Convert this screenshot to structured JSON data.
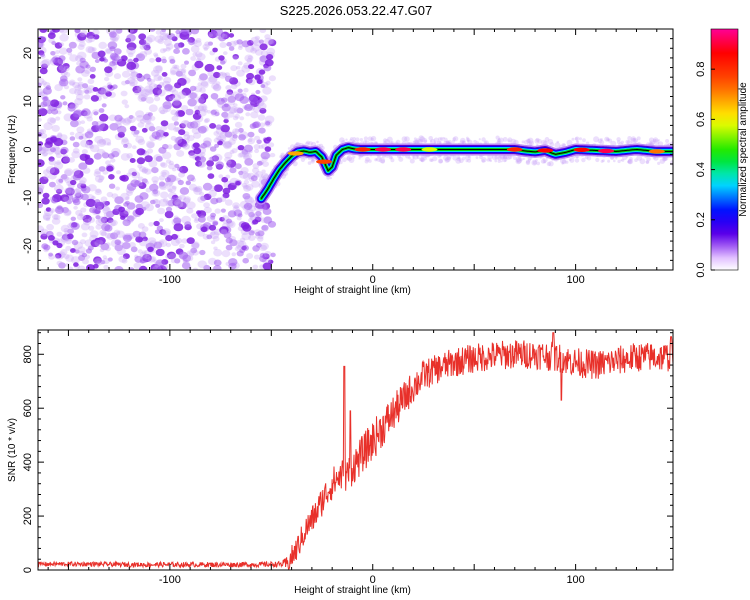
{
  "figure": {
    "title": "S225.2026.053.22.47.G07"
  },
  "colors": {
    "snr_line": "#e8302a",
    "scatter_noise": "#8a2be2",
    "frame": "#000000"
  },
  "chart_data": [
    {
      "type": "heatmap",
      "name": "spectrogram",
      "xlabel": "Height of straight line (km)",
      "ylabel": "Frequency (Hz)",
      "xlim": [
        -165,
        148
      ],
      "ylim": [
        -25,
        25
      ],
      "xticks": [
        -100,
        0,
        100
      ],
      "yticks": [
        -20,
        -10,
        0,
        10,
        20
      ],
      "xtick_labels": [
        "-100",
        "0",
        "100"
      ],
      "ytick_labels": [
        "-20",
        "-10",
        "0",
        "10",
        "20"
      ],
      "noise_region_x": [
        -165,
        -52
      ],
      "ridge": {
        "x": [
          -55,
          -52,
          -49,
          -46,
          -43,
          -40,
          -37,
          -34,
          -31,
          -28,
          -25,
          -22,
          -20,
          -18,
          -15,
          -12,
          -9,
          -6,
          -3,
          0,
          10,
          20,
          30,
          40,
          50,
          60,
          70,
          75,
          80,
          85,
          90,
          95,
          100,
          110,
          120,
          130,
          140,
          148
        ],
        "freq": [
          -10.2,
          -8.4,
          -6.2,
          -4.2,
          -2.7,
          -1.4,
          -0.5,
          -0.3,
          -0.6,
          -0.4,
          -1.6,
          -4.4,
          -3.6,
          -1.2,
          0.0,
          0.4,
          0.1,
          0.0,
          0.0,
          0.0,
          0.0,
          0.0,
          0.0,
          0.0,
          0.0,
          0.0,
          0.0,
          -0.3,
          -0.5,
          -0.2,
          -1.0,
          -0.6,
          0.0,
          -0.2,
          -0.4,
          0.0,
          -0.4,
          -0.4
        ]
      },
      "colorbar": {
        "label": "Normalized spectral amplitude",
        "range": [
          0,
          0.96
        ],
        "ticks": [
          0.0,
          0.2,
          0.4,
          0.6,
          0.8
        ],
        "tick_labels": [
          "0.0",
          "0.2",
          "0.4",
          "0.6",
          "0.8"
        ]
      }
    },
    {
      "type": "line",
      "name": "snr",
      "xlabel": "Height of straight line (km)",
      "ylabel": "SNR (10 * v/v)",
      "xlim": [
        -165,
        148
      ],
      "ylim": [
        0,
        890
      ],
      "xticks": [
        -100,
        0,
        100
      ],
      "yticks": [
        0,
        200,
        400,
        600,
        800
      ],
      "xtick_labels": [
        "-100",
        "0",
        "100"
      ],
      "ytick_labels": [
        "0",
        "200",
        "400",
        "600",
        "800"
      ],
      "trend": {
        "x": [
          -165,
          -140,
          -120,
          -100,
          -80,
          -60,
          -42,
          -38,
          -33,
          -28,
          -24,
          -20,
          -16,
          -12,
          -8,
          -4,
          0,
          5,
          10,
          15,
          20,
          25,
          30,
          40,
          50,
          60,
          70,
          80,
          90,
          100,
          110,
          120,
          130,
          140,
          148
        ],
        "y": [
          22,
          22,
          20,
          20,
          20,
          20,
          22,
          70,
          150,
          210,
          270,
          320,
          350,
          360,
          400,
          440,
          480,
          530,
          580,
          630,
          680,
          720,
          740,
          770,
          785,
          795,
          800,
          800,
          790,
          770,
          760,
          775,
          790,
          790,
          790
        ]
      },
      "spikes": [
        {
          "x": -14,
          "y": 755
        },
        {
          "x": -11,
          "y": 590
        },
        {
          "x": 89,
          "y": 880
        },
        {
          "x": 93,
          "y": 630
        },
        {
          "x": 147,
          "y": 865
        }
      ],
      "noise_amplitude": {
        "x": [
          -165,
          -45,
          -40,
          0,
          30,
          148
        ],
        "amp": [
          8,
          10,
          45,
          75,
          55,
          55
        ]
      }
    }
  ]
}
